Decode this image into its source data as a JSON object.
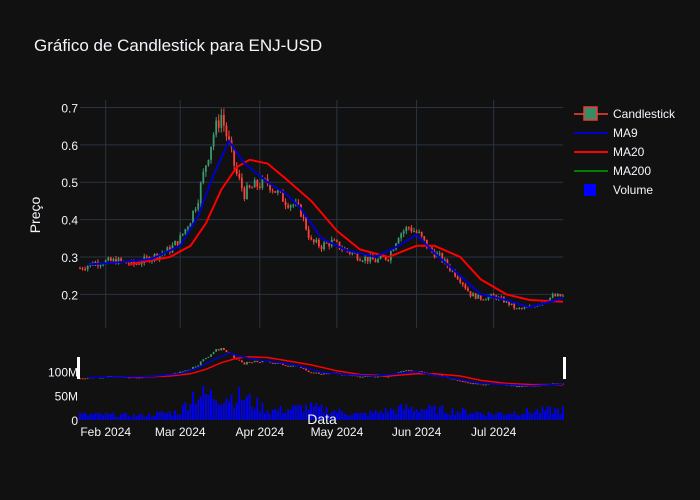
{
  "title": "Gráfico de Candlestick para ENJ-USD",
  "colors": {
    "background": "#111111",
    "grid": "#283442",
    "increasing": "#3d9970",
    "decreasing": "#ff4136",
    "ma9": "#0000cc",
    "ma20": "#ff0000",
    "ma200": "#008000",
    "volume": "#0000ff"
  },
  "chart_data": [
    {
      "type": "candlestick",
      "title": "Gráfico de Candlestick para ENJ-USD",
      "ylabel": "Preço",
      "ylim": [
        0.11,
        0.72
      ],
      "yticks": [
        0.2,
        0.3,
        0.4,
        0.5,
        0.6,
        0.7
      ],
      "ytick_labels": [
        "0.2",
        "0.3",
        "0.4",
        "0.5",
        "0.6",
        "0.7"
      ],
      "grid": true,
      "legend": {
        "placement": "top-right",
        "entries": [
          {
            "label": "Candlestick",
            "kind": "candle"
          },
          {
            "label": "MA9",
            "kind": "line",
            "color": "#0000cc"
          },
          {
            "label": "MA20",
            "kind": "line",
            "color": "#ff0000"
          },
          {
            "label": "MA200",
            "kind": "line",
            "color": "#008000"
          },
          {
            "label": "Volume",
            "kind": "box",
            "color": "#0000ff"
          }
        ]
      },
      "x_range": [
        "2024-01-22",
        "2024-07-28"
      ],
      "price_points": [
        [
          "2024-01-22",
          0.27
        ],
        [
          "2024-01-28",
          0.285
        ],
        [
          "2024-02-05",
          0.29
        ],
        [
          "2024-02-12",
          0.28
        ],
        [
          "2024-02-19",
          0.3
        ],
        [
          "2024-02-26",
          0.32
        ],
        [
          "2024-03-01",
          0.35
        ],
        [
          "2024-03-05",
          0.4
        ],
        [
          "2024-03-08",
          0.46
        ],
        [
          "2024-03-11",
          0.55
        ],
        [
          "2024-03-14",
          0.63
        ],
        [
          "2024-03-17",
          0.68
        ],
        [
          "2024-03-20",
          0.6
        ],
        [
          "2024-03-23",
          0.52
        ],
        [
          "2024-03-26",
          0.47
        ],
        [
          "2024-03-30",
          0.49
        ],
        [
          "2024-04-04",
          0.5
        ],
        [
          "2024-04-08",
          0.47
        ],
        [
          "2024-04-11",
          0.45
        ],
        [
          "2024-04-14",
          0.44
        ],
        [
          "2024-04-17",
          0.42
        ],
        [
          "2024-04-21",
          0.34
        ],
        [
          "2024-04-25",
          0.33
        ],
        [
          "2024-04-29",
          0.34
        ],
        [
          "2024-05-04",
          0.32
        ],
        [
          "2024-05-10",
          0.3
        ],
        [
          "2024-05-16",
          0.29
        ],
        [
          "2024-05-21",
          0.3
        ],
        [
          "2024-05-25",
          0.36
        ],
        [
          "2024-05-29",
          0.38
        ],
        [
          "2024-06-02",
          0.36
        ],
        [
          "2024-06-06",
          0.32
        ],
        [
          "2024-06-10",
          0.3
        ],
        [
          "2024-06-14",
          0.27
        ],
        [
          "2024-06-18",
          0.24
        ],
        [
          "2024-06-22",
          0.2
        ],
        [
          "2024-06-26",
          0.19
        ],
        [
          "2024-07-01",
          0.195
        ],
        [
          "2024-07-06",
          0.18
        ],
        [
          "2024-07-10",
          0.16
        ],
        [
          "2024-07-15",
          0.165
        ],
        [
          "2024-07-20",
          0.18
        ],
        [
          "2024-07-24",
          0.195
        ],
        [
          "2024-07-28",
          0.195
        ]
      ],
      "ma9": [
        [
          "2024-01-25",
          0.28
        ],
        [
          "2024-02-05",
          0.285
        ],
        [
          "2024-02-19",
          0.295
        ],
        [
          "2024-03-01",
          0.33
        ],
        [
          "2024-03-08",
          0.41
        ],
        [
          "2024-03-14",
          0.52
        ],
        [
          "2024-03-20",
          0.61
        ],
        [
          "2024-03-26",
          0.55
        ],
        [
          "2024-04-04",
          0.5
        ],
        [
          "2024-04-11",
          0.47
        ],
        [
          "2024-04-17",
          0.43
        ],
        [
          "2024-04-25",
          0.35
        ],
        [
          "2024-05-04",
          0.32
        ],
        [
          "2024-05-16",
          0.3
        ],
        [
          "2024-05-25",
          0.33
        ],
        [
          "2024-06-01",
          0.36
        ],
        [
          "2024-06-08",
          0.31
        ],
        [
          "2024-06-18",
          0.25
        ],
        [
          "2024-06-26",
          0.2
        ],
        [
          "2024-07-06",
          0.185
        ],
        [
          "2024-07-15",
          0.165
        ],
        [
          "2024-07-28",
          0.19
        ]
      ],
      "ma20": [
        [
          "2024-02-10",
          0.28
        ],
        [
          "2024-02-26",
          0.3
        ],
        [
          "2024-03-05",
          0.33
        ],
        [
          "2024-03-11",
          0.39
        ],
        [
          "2024-03-17",
          0.48
        ],
        [
          "2024-03-23",
          0.54
        ],
        [
          "2024-03-28",
          0.56
        ],
        [
          "2024-04-04",
          0.55
        ],
        [
          "2024-04-11",
          0.51
        ],
        [
          "2024-04-21",
          0.45
        ],
        [
          "2024-05-01",
          0.37
        ],
        [
          "2024-05-10",
          0.32
        ],
        [
          "2024-05-21",
          0.3
        ],
        [
          "2024-06-01",
          0.33
        ],
        [
          "2024-06-08",
          0.33
        ],
        [
          "2024-06-18",
          0.3
        ],
        [
          "2024-06-26",
          0.24
        ],
        [
          "2024-07-06",
          0.2
        ],
        [
          "2024-07-15",
          0.185
        ],
        [
          "2024-07-28",
          0.18
        ]
      ],
      "ma200": []
    },
    {
      "type": "range-slider",
      "description_note": ""
    },
    {
      "type": "bar",
      "series_name": "Volume",
      "ylim": [
        0,
        140000000
      ],
      "yticks_labels": [
        "0",
        "50M",
        "100M"
      ],
      "xlabel": "Data",
      "x_ticks": [
        "Feb 2024",
        "Mar 2024",
        "Apr 2024",
        "May 2024",
        "Jun 2024",
        "Jul 2024"
      ],
      "x_tick_dates": [
        "2024-02-01",
        "2024-03-01",
        "2024-04-01",
        "2024-05-01",
        "2024-06-01",
        "2024-07-01"
      ],
      "volume_levels": [
        [
          "2024-01-22",
          12000000
        ],
        [
          "2024-02-15",
          10000000
        ],
        [
          "2024-03-01",
          18000000
        ],
        [
          "2024-03-06",
          55000000
        ],
        [
          "2024-03-25",
          50000000
        ],
        [
          "2024-04-05",
          20000000
        ],
        [
          "2024-04-20",
          28000000
        ],
        [
          "2024-05-10",
          12000000
        ],
        [
          "2024-05-28",
          26000000
        ],
        [
          "2024-06-10",
          22000000
        ],
        [
          "2024-07-01",
          14000000
        ],
        [
          "2024-07-28",
          22000000
        ]
      ]
    }
  ]
}
